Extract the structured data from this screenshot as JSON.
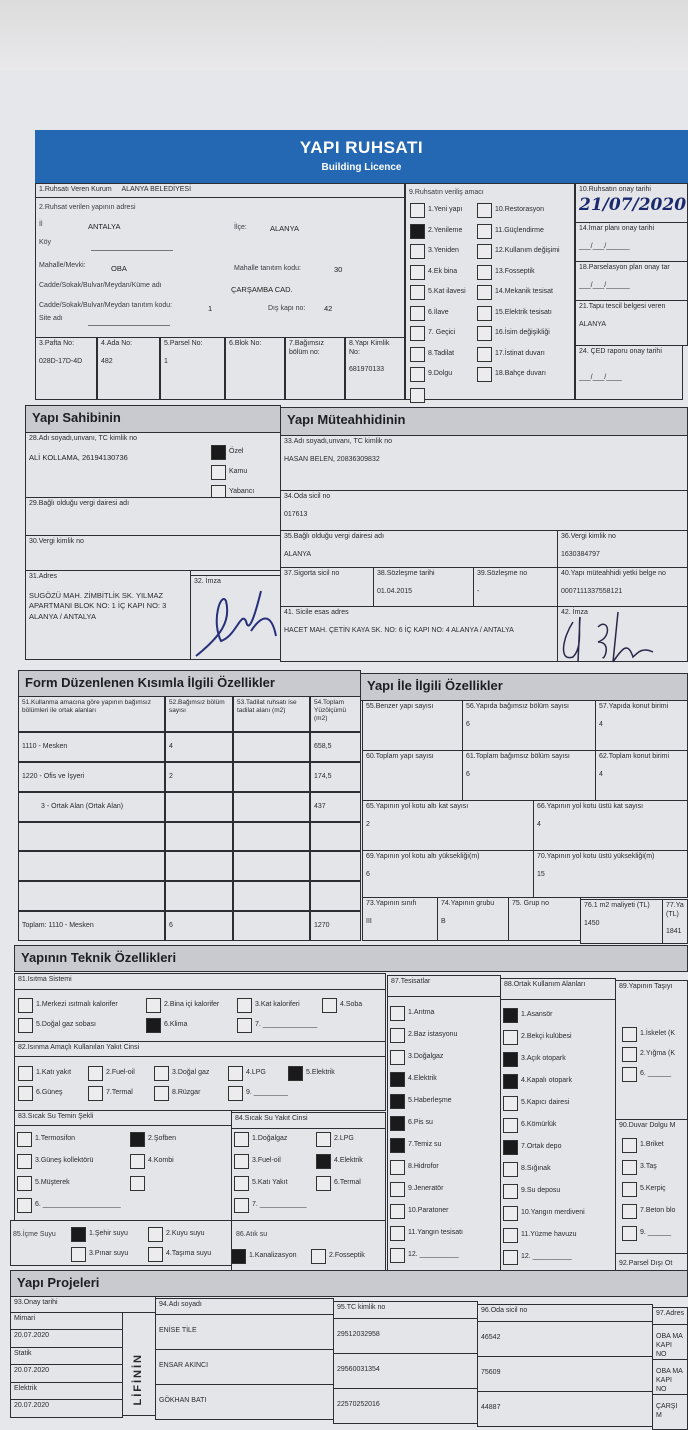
{
  "header": {
    "title": "YAPI RUHSATI",
    "subtitle": "Building Licence"
  },
  "s1": {
    "label": "1.Ruhsatı Veren Kurum",
    "value": "ALANYA BELEDİYESİ"
  },
  "s2": {
    "label": "2.Ruhsat verilen yapının adresi",
    "il_label": "İl",
    "il": "ANTALYA",
    "ilce_label": "İlçe:",
    "ilce": "ALANYA",
    "koy_label": "Köy",
    "mahalle_label": "Mahalle/Mevki:",
    "mahalle": "OBA",
    "mahalle_kod_label": "Mahalle tanıtım kodu:",
    "mahalle_kod": "30",
    "cadde_label": "Cadde/Sokak/Bulvar/Meydan/Küme adı",
    "cadde": "ÇARŞAMBA CAD.",
    "cadde_kod_label": "Cadde/Sokak/Bulvar/Meydan tanıtım kodu:",
    "cadde_kod": "1",
    "dis_kapi_label": "Dış kapı no:",
    "dis_kapi": "42",
    "site_label": "Site adı"
  },
  "parcel": [
    {
      "label": "3.Pafta No:",
      "value": "028D-17D-4D"
    },
    {
      "label": "4.Ada No:",
      "value": "482"
    },
    {
      "label": "5.Parsel No:",
      "value": "1"
    },
    {
      "label": "6.Blok No:",
      "value": ""
    },
    {
      "label": "7.Bağımsız bölüm no:",
      "value": ""
    },
    {
      "label": "8.Yapı Kimlik No:",
      "value": "681970133"
    }
  ],
  "s9": {
    "label": "9.Ruhsatın veriliş amacı",
    "items": [
      {
        "label": "1.Yeni yapı",
        "checked": false
      },
      {
        "label": "10.Restorasyon",
        "checked": false
      },
      {
        "label": "2.Yenileme",
        "checked": true
      },
      {
        "label": "11.Güçlendirme",
        "checked": false
      },
      {
        "label": "3.Yeniden",
        "checked": false
      },
      {
        "label": "12.Kullanım değişimi",
        "checked": false
      },
      {
        "label": "4.Ek bina",
        "checked": false
      },
      {
        "label": "13.Fosseptik",
        "checked": false
      },
      {
        "label": "5.Kat ilavesi",
        "checked": false
      },
      {
        "label": "14.Mekanik tesisat",
        "checked": false
      },
      {
        "label": "6.İlave",
        "checked": false
      },
      {
        "label": "15.Elektrik tesisatı",
        "checked": false
      },
      {
        "label": "7. Geçici",
        "checked": false
      },
      {
        "label": "16.İsim değişikliği",
        "checked": false
      },
      {
        "label": "8.Tadilat",
        "checked": false
      },
      {
        "label": "17.İstinat duvarı",
        "checked": false
      },
      {
        "label": "9.Dolgu",
        "checked": false
      },
      {
        "label": "18.Bahçe duvarı",
        "checked": false
      },
      {
        "label": "",
        "checked": false
      }
    ]
  },
  "s10": {
    "label": "10.Ruhsatın onay tarihi",
    "value": "21/07/2020"
  },
  "s14": {
    "label": "14.İmar planı onay tarihi",
    "value": "___/___/______"
  },
  "s18": {
    "label": "18.Parselasyon plan onay tar",
    "value": "___/___/______"
  },
  "s21": {
    "label": "21.Tapu tescil belgesi veren",
    "value": "ALANYA"
  },
  "s24": {
    "label": "24. ÇED raporu onay tarihi",
    "value": "___/___/____"
  },
  "owner": {
    "title": "Yapı Sahibinin",
    "s28_label": "28.Adı soyadı,unvanı, TC kimlik no",
    "s28": "ALİ KOLLAMA, 26194130736",
    "types": [
      {
        "label": "Özel",
        "checked": true
      },
      {
        "label": "Kamu",
        "checked": false
      },
      {
        "label": "Yabancı",
        "checked": false
      }
    ],
    "s29_label": "29.Bağlı olduğu vergi dairesi adı",
    "s30_label": "30.Vergi kimlik no",
    "s31_label": "31.Adres",
    "s31": "SUGÖZÜ MAH. ZİMBİTLİK SK. YILMAZ APARTMANI BLOK NO: 1 İÇ KAPI NO: 3 ALANYA / ANTALYA",
    "s32_label": "32. İmza"
  },
  "contractor": {
    "title": "Yapı Müteahhidinin",
    "s33_label": "33.Adı soyadı,unvanı, TC kimlik no",
    "s33": "HASAN BELEN, 20836309832",
    "s34_label": "34.Oda sicil no",
    "s34": "017613",
    "s35_label": "35.Bağlı olduğu vergi dairesi adı",
    "s35": "ALANYA",
    "s36_label": "36.Vergi kimlik no",
    "s36": "1630384797",
    "s37_label": "37.Sigorta sicil no",
    "s37": "",
    "s38_label": "38.Sözleşme tarihi",
    "s38": "01.04.2015",
    "s39_label": "39.Sözleşme no",
    "s39": "-",
    "s40_label": "40.Yapı müteahhidi yetki belge no",
    "s40": "0007111337558121",
    "s41_label": "41. Sicile esas adres",
    "s41": "HACET MAH. ÇETİN KAYA SK. NO: 6 İÇ KAPI NO: 4 ALANYA / ANTALYA",
    "s42_label": "42. İmza"
  },
  "form": {
    "title": "Form Düzenlenen Kısımla İlgili Özellikler",
    "columns": [
      "51.Kullanma amacına göre yapının bağımsız bölümleri ile ortak alanları",
      "52.Bağımsız bölüm sayısı",
      "53.Tadilat ruhsatı ise tadilat alanı (m2)",
      "54.Toplam Yüzölçümü (m2)"
    ],
    "rows": [
      [
        "1110 - Mesken",
        "4",
        "",
        "658,5"
      ],
      [
        "1220 - Ofis ve İşyeri",
        "2",
        "",
        "174,5"
      ],
      [
        "3 - Ortak Alan (Ortak Alan)",
        "",
        "",
        "437"
      ],
      [
        "",
        "",
        "",
        ""
      ],
      [
        "",
        "",
        "",
        ""
      ],
      [
        "",
        "",
        "",
        ""
      ],
      [
        "Toplam:  1110 - Mesken",
        "6",
        "",
        "1270"
      ]
    ]
  },
  "building": {
    "title": "Yapı İle İlgili Özellikler",
    "cells": [
      {
        "label": "55.Benzer yapı sayısı",
        "value": ""
      },
      {
        "label": "56.Yapıda bağımsız bölüm sayısı",
        "value": "6"
      },
      {
        "label": "57.Yapıda konut birimi",
        "value": "4"
      },
      {
        "label": "60.Toplam yapı sayısı",
        "value": ""
      },
      {
        "label": "61.Toplam bağımsız bölüm sayısı",
        "value": "6"
      },
      {
        "label": "62.Toplam konut birimi",
        "value": "4"
      },
      {
        "label": "65.Yapının yol kotu altı kat sayısı",
        "value": "2"
      },
      {
        "label": "66.Yapının yol kotu üstü kat sayısı",
        "value": "4"
      },
      {
        "label": "69.Yapının yol kotu altı yüksekliği(m)",
        "value": "6"
      },
      {
        "label": "70.Yapının yol kotu üstü yüksekliği(m)",
        "value": "15"
      },
      {
        "label": "73.Yapının sınıfı",
        "value": "III"
      },
      {
        "label": "74.Yapının grubu",
        "value": "B"
      },
      {
        "label": "75. Grup no",
        "value": ""
      },
      {
        "label": "76.1 m2 maliyeti (TL)",
        "value": "1450"
      },
      {
        "label": "77.Ya (TL)",
        "value": "1841"
      }
    ]
  },
  "tech": {
    "title": "Yapının Teknik Özellikleri",
    "s81": {
      "label": "81.Isıtma Sistemi",
      "items": [
        {
          "label": "1.Merkezi ısıtmalı kalorifer",
          "checked": false
        },
        {
          "label": "2.Bina içi kalorifer",
          "checked": false
        },
        {
          "label": "3.Kat kaloriferi",
          "checked": false
        },
        {
          "label": "4.Soba",
          "checked": false
        },
        {
          "label": "5.Doğal gaz sobası",
          "checked": false
        },
        {
          "label": "6.Klima",
          "checked": true
        },
        {
          "label": "7. ______________",
          "checked": false
        }
      ]
    },
    "s82": {
      "label": "82.Isınma Amaçlı Kullanılan Yakıt Cinsi",
      "items": [
        {
          "label": "1.Katı yakıt",
          "checked": false
        },
        {
          "label": "2.Fuel-oil",
          "checked": false
        },
        {
          "label": "3.Doğal gaz",
          "checked": false
        },
        {
          "label": "4.LPG",
          "checked": false
        },
        {
          "label": "5.Elektrik",
          "checked": true
        },
        {
          "label": "6.Güneş",
          "checked": false
        },
        {
          "label": "7.Termal",
          "checked": false
        },
        {
          "label": "8.Rüzgar",
          "checked": false
        },
        {
          "label": "9. ______________",
          "checked": false
        }
      ]
    },
    "s83": {
      "label": "83.Sıcak Su Temin Şekli",
      "items": [
        {
          "label": "1.Termosifon",
          "checked": false
        },
        {
          "label": "2.Şofben",
          "checked": true
        },
        {
          "label": "3.Güneş kollektörü",
          "checked": false
        },
        {
          "label": "4.Kombi",
          "checked": false
        },
        {
          "label": "5.Müşterek",
          "checked": false
        },
        {
          "label": "",
          "checked": false
        },
        {
          "label": "6. ____________________",
          "checked": false
        }
      ]
    },
    "s84": {
      "label": "84.Sıcak Su Yakıt Cinsi",
      "items": [
        {
          "label": "1.Doğalgaz",
          "checked": false
        },
        {
          "label": "2.LPG",
          "checked": false
        },
        {
          "label": "3.Fuel-oil",
          "checked": false
        },
        {
          "label": "4.Elektrik",
          "checked": true
        },
        {
          "label": "5.Katı Yakıt",
          "checked": false
        },
        {
          "label": "6.Termal",
          "checked": false
        },
        {
          "label": "7. ____________",
          "checked": false
        }
      ]
    },
    "s85": {
      "label": "85.İçme Suyu",
      "items": [
        {
          "label": "1.Şehir suyu",
          "checked": true
        },
        {
          "label": "2.Kuyu suyu",
          "checked": false
        },
        {
          "label": "3.Pınar suyu",
          "checked": false
        },
        {
          "label": "4.Taşıma suyu",
          "checked": false
        }
      ]
    },
    "s86": {
      "label": "86.Atık su",
      "items": [
        {
          "label": "1.Kanalizasyon",
          "checked": true
        },
        {
          "label": "2.Fosseptik",
          "checked": false
        }
      ]
    },
    "s87": {
      "label": "87.Tesisatlar",
      "items": [
        {
          "label": "1.Arıtma",
          "checked": false
        },
        {
          "label": "2.Baz istasyonu",
          "checked": false
        },
        {
          "label": "3.Doğalgaz",
          "checked": false
        },
        {
          "label": "4.Elektrik",
          "checked": true
        },
        {
          "label": "5.Haberleşme",
          "checked": true
        },
        {
          "label": "6.Pis su",
          "checked": true
        },
        {
          "label": "7.Temiz su",
          "checked": true
        },
        {
          "label": "8.Hidrofor",
          "checked": false
        },
        {
          "label": "9.Jeneratör",
          "checked": false
        },
        {
          "label": "10.Paratoner",
          "checked": false
        },
        {
          "label": "11.Yangın tesisatı",
          "checked": false
        },
        {
          "label": "12. __________",
          "checked": false
        }
      ]
    },
    "s88": {
      "label": "88.Ortak Kullanım Alanları",
      "items": [
        {
          "label": "1.Asansör",
          "checked": true
        },
        {
          "label": "2.Bekçi kulübesi",
          "checked": false
        },
        {
          "label": "3.Açık otopark",
          "checked": true
        },
        {
          "label": "4.Kapalı otopark",
          "checked": true
        },
        {
          "label": "5.Kapıcı dairesi",
          "checked": false
        },
        {
          "label": "6.Kömürlük",
          "checked": false
        },
        {
          "label": "7.Ortak depo",
          "checked": true
        },
        {
          "label": "8.Sığınak",
          "checked": false
        },
        {
          "label": "9.Su deposu",
          "checked": false
        },
        {
          "label": "10.Yangın merdiveni",
          "checked": false
        },
        {
          "label": "11.Yüzme havuzu",
          "checked": false
        },
        {
          "label": "12. __________",
          "checked": false
        }
      ]
    },
    "s89": {
      "label": "89.Yapının Taşıyı",
      "items": [
        {
          "label": "1.İskelet (K",
          "checked": false
        },
        {
          "label": "2.Yığma (K",
          "checked": false
        },
        {
          "label": "6. ______",
          "checked": false
        }
      ]
    },
    "s90": {
      "label": "90.Duvar Dolgu M",
      "items": [
        {
          "label": "1.Briket",
          "checked": false
        },
        {
          "label": "3.Taş",
          "checked": false
        },
        {
          "label": "5.Kerpiç",
          "checked": false
        },
        {
          "label": "7.Beton blo",
          "checked": false
        },
        {
          "label": "9. ______",
          "checked": false
        }
      ]
    },
    "s92": {
      "label": "92.Parsel Dışı Ot"
    }
  },
  "projects": {
    "title": "Yapı Projeleri",
    "col93": "93.Onay tarihi",
    "col94": "94.Adı soyadı",
    "col95": "95.TC kimlik no",
    "col96": "96.Oda sicil no",
    "col97": "97.Adres",
    "vertical": "LİFİNİN",
    "rows": [
      {
        "type": "Mimari",
        "date": "20.07.2020",
        "name": "ENİSE TİLE",
        "tc": "29512032958",
        "oda": "46542",
        "adres": "OBA MA KAPI NO"
      },
      {
        "type": "Statik",
        "date": "20.07.2020",
        "name": "ENSAR AKINCI",
        "tc": "29560031354",
        "oda": "75609",
        "adres": "OBA MA KAPI NO"
      },
      {
        "type": "Elektrik",
        "date": "20.07.2020",
        "name": "GÖKHAN BATI",
        "tc": "22570252016",
        "oda": "44887",
        "adres": "ÇARŞI M"
      }
    ]
  }
}
